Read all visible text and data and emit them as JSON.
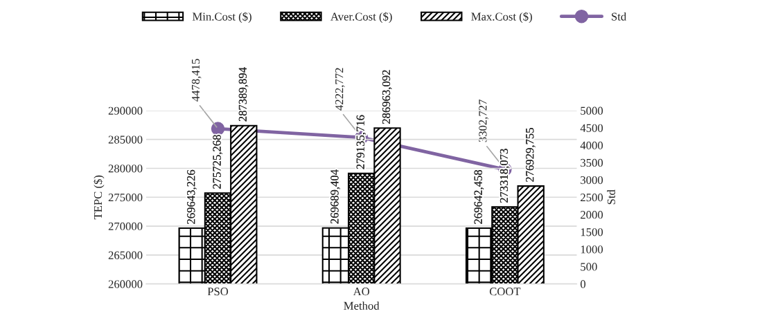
{
  "chart_data": {
    "type": "bar",
    "xlabel": "Method",
    "ylabel": "TEPC ($)",
    "y2label": "Std",
    "categories": [
      "PSO",
      "AO",
      "COOT"
    ],
    "series": [
      {
        "name": "Min.Cost ($)",
        "color": "#000000",
        "values": [
          269643.226,
          269689.404,
          269642.458
        ],
        "value_labels": [
          "269643,226",
          "269689,404",
          "269642,458"
        ]
      },
      {
        "name": "Aver.Cost ($)",
        "color": "#000000",
        "values": [
          275725.268,
          279135.716,
          273318.073
        ],
        "value_labels": [
          "275725,268",
          "279135,716",
          "273318,073"
        ]
      },
      {
        "name": "Max.Cost ($)",
        "color": "#000000",
        "values": [
          287389.894,
          286963.092,
          276929.755
        ],
        "value_labels": [
          "287389,894",
          "286963,092",
          "276929,755"
        ]
      },
      {
        "name": "Std",
        "type": "line",
        "axis": "y2",
        "color": "#8064a2",
        "marker": "circle",
        "values": [
          4478.415,
          4222.772,
          3302.727
        ],
        "value_labels": [
          "4478,415",
          "4222,772",
          "3302,727"
        ]
      }
    ],
    "ylim": [
      260000,
      290000
    ],
    "yticks": [
      260000,
      265000,
      270000,
      275000,
      280000,
      285000,
      290000
    ],
    "y2lim": [
      0,
      5000
    ],
    "y2ticks": [
      0,
      500,
      1000,
      1500,
      2000,
      2500,
      3000,
      3500,
      4000,
      4500,
      5000
    ],
    "grid": "y",
    "legend": "top"
  }
}
